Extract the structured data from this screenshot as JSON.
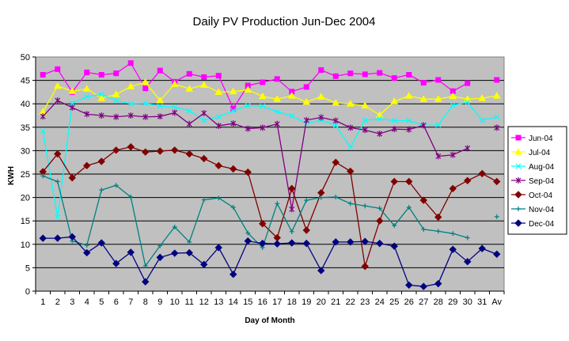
{
  "chart_data": {
    "type": "line",
    "title": "Daily PV Production Jun-Dec 2004",
    "xlabel": "Day of Month",
    "ylabel": "KWH",
    "ylim": [
      0,
      50
    ],
    "yticks": [
      0,
      5,
      10,
      15,
      20,
      25,
      30,
      35,
      40,
      45,
      50
    ],
    "categories": [
      "1",
      "2",
      "3",
      "4",
      "5",
      "6",
      "7",
      "8",
      "9",
      "10",
      "11",
      "12",
      "13",
      "14",
      "15",
      "16",
      "17",
      "18",
      "19",
      "20",
      "21",
      "22",
      "23",
      "24",
      "25",
      "26",
      "27",
      "28",
      "29",
      "30",
      "31",
      "Av"
    ],
    "grid": true,
    "legend_position": "right",
    "plot_background": "#c0c0c0",
    "series": [
      {
        "name": "Jun-04",
        "color": "#ff00ff",
        "marker": "square",
        "values": [
          46.2,
          47.4,
          42.5,
          46.7,
          46.2,
          46.5,
          48.7,
          43.3,
          47.1,
          44.7,
          46.4,
          45.7,
          46.0,
          39.0,
          43.9,
          44.6,
          45.3,
          42.6,
          43.6,
          47.2,
          45.9,
          46.5,
          46.3,
          46.6,
          45.5,
          46.2,
          44.5,
          45.1,
          42.7,
          44.4,
          null,
          45.1
        ]
      },
      {
        "name": "Jul-04",
        "color": "#ffff00",
        "marker": "triangle",
        "values": [
          38.3,
          43.8,
          42.7,
          43.2,
          41.2,
          42.0,
          43.7,
          44.6,
          40.7,
          44.2,
          43.2,
          44.0,
          42.5,
          42.6,
          43.0,
          41.6,
          41.0,
          41.7,
          40.4,
          41.5,
          40.2,
          40.0,
          39.6,
          37.6,
          40.5,
          41.7,
          41.0,
          41.0,
          41.6,
          41.0,
          41.2,
          41.7
        ]
      },
      {
        "name": "Aug-04",
        "color": "#00ffff",
        "marker": "x",
        "values": [
          34.2,
          15.8,
          40.1,
          41.5,
          42.0,
          40.7,
          40.0,
          40.1,
          39.5,
          39.3,
          38.5,
          36.5,
          37.2,
          38.5,
          39.6,
          39.5,
          38.3,
          37.4,
          35.8,
          36.5,
          35.4,
          30.7,
          36.5,
          36.8,
          36.4,
          36.4,
          35.4,
          35.5,
          39.7,
          40.3,
          36.5,
          37.2
        ]
      },
      {
        "name": "Sep-04",
        "color": "#800080",
        "marker": "asterisk",
        "values": [
          37.3,
          40.7,
          39.2,
          37.8,
          37.5,
          37.2,
          37.5,
          37.2,
          37.3,
          38.1,
          35.7,
          38.0,
          35.3,
          35.8,
          34.7,
          34.9,
          35.7,
          17.5,
          36.5,
          37.1,
          36.4,
          34.9,
          34.4,
          33.6,
          34.6,
          34.5,
          35.4,
          28.8,
          29.1,
          30.5,
          null,
          34.9
        ]
      },
      {
        "name": "Oct-04",
        "color": "#800000",
        "marker": "diamond",
        "values": [
          25.5,
          29.3,
          24.2,
          26.8,
          27.7,
          30.1,
          30.8,
          29.7,
          29.9,
          30.1,
          29.3,
          28.3,
          26.8,
          26.1,
          25.4,
          14.4,
          11.4,
          21.9,
          13.0,
          21.0,
          27.5,
          25.6,
          5.3,
          15.0,
          23.4,
          23.4,
          19.4,
          15.8,
          21.9,
          23.6,
          25.1,
          23.4
        ]
      },
      {
        "name": "Nov-04",
        "color": "#008080",
        "marker": "plus",
        "values": [
          24.6,
          23.4,
          10.7,
          9.8,
          21.6,
          22.6,
          20.1,
          5.4,
          9.7,
          13.7,
          10.5,
          19.5,
          19.9,
          17.9,
          12.4,
          9.3,
          18.7,
          12.7,
          19.4,
          20.0,
          20.1,
          18.7,
          18.2,
          17.7,
          14.0,
          17.9,
          13.2,
          12.8,
          12.3,
          11.4,
          null,
          15.9
        ]
      },
      {
        "name": "Dec-04",
        "color": "#000080",
        "marker": "diamond",
        "values": [
          11.3,
          11.3,
          11.6,
          8.2,
          10.3,
          5.9,
          8.3,
          2.0,
          7.2,
          8.1,
          8.2,
          5.7,
          9.3,
          3.6,
          10.7,
          10.2,
          10.1,
          10.3,
          10.2,
          4.4,
          10.5,
          10.5,
          10.6,
          10.2,
          9.6,
          1.3,
          1.0,
          1.6,
          8.9,
          6.3,
          9.1,
          7.9
        ]
      }
    ]
  }
}
